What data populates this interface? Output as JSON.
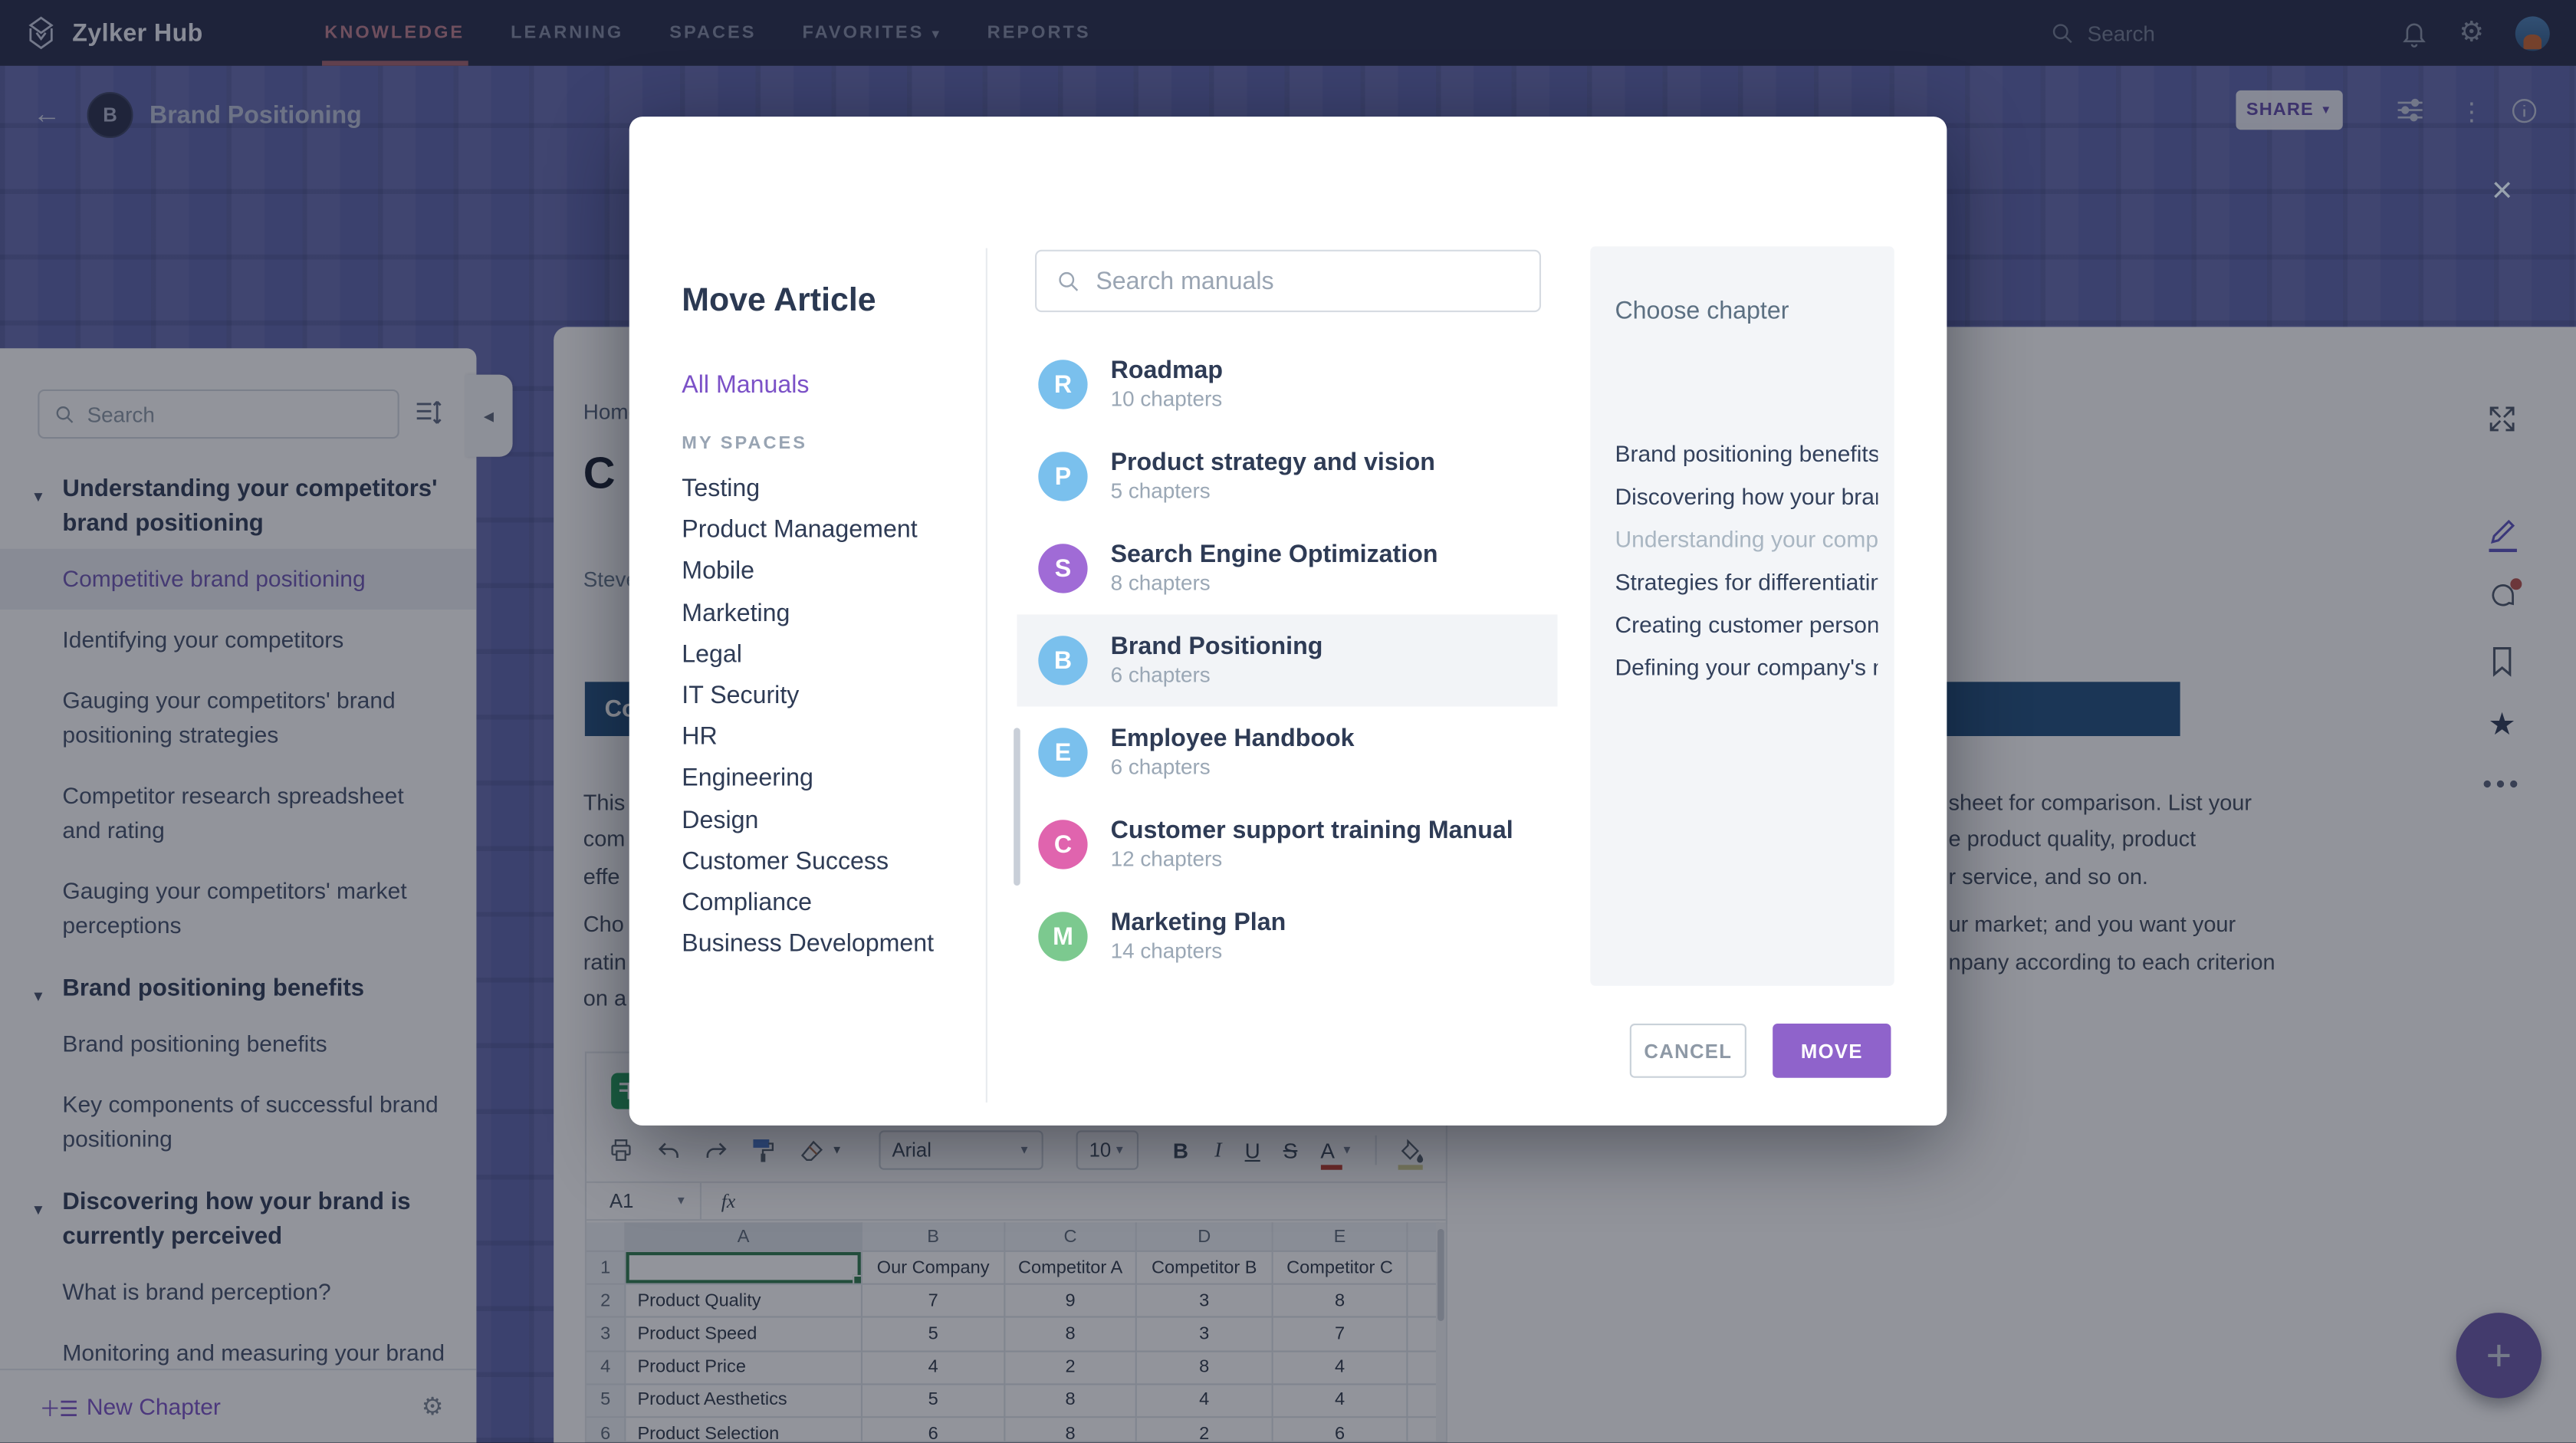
{
  "topbar": {
    "brand": "Zylker Hub",
    "nav": [
      {
        "label": "KNOWLEDGE",
        "active": true,
        "caret": false
      },
      {
        "label": "LEARNING",
        "active": false,
        "caret": false
      },
      {
        "label": "SPACES",
        "active": false,
        "caret": false
      },
      {
        "label": "FAVORITES",
        "active": false,
        "caret": true
      },
      {
        "label": "REPORTS",
        "active": false,
        "caret": false
      }
    ],
    "search_label": "Search"
  },
  "page_header": {
    "doc_initial": "B",
    "doc_title": "Brand Positioning",
    "share_label": "SHARE"
  },
  "sidebar": {
    "search_placeholder": "Search",
    "tree": [
      {
        "type": "section",
        "label": "Understanding your competitors' brand positioning"
      },
      {
        "type": "item",
        "label": "Competitive brand positioning",
        "selected": true
      },
      {
        "type": "item",
        "label": "Identifying your competitors"
      },
      {
        "type": "item",
        "label": "Gauging your competitors' brand positioning strategies"
      },
      {
        "type": "item",
        "label": "Competitor research spreadsheet and rating"
      },
      {
        "type": "item",
        "label": "Gauging your competitors' market perceptions"
      },
      {
        "type": "section",
        "label": "Brand positioning benefits"
      },
      {
        "type": "item",
        "label": "Brand positioning benefits"
      },
      {
        "type": "item",
        "label": "Key components of successful brand positioning"
      },
      {
        "type": "section",
        "label": "Discovering how your brand is currently perceived"
      },
      {
        "type": "item",
        "label": "What is brand perception?"
      },
      {
        "type": "item",
        "label": "Monitoring and measuring your brand perception"
      }
    ],
    "new_chapter_label": "New Chapter"
  },
  "article": {
    "breadcrumb": "Home",
    "title_fragment": "C",
    "author_fragment": "Steve",
    "heading_fragment": "Co",
    "body_left_fragments": [
      "This",
      "com",
      "effe",
      "Cho",
      "ratin",
      "on a"
    ],
    "body_right_fragments": [
      "sheet for comparison. List your",
      "e product quality, product",
      "r service, and so on.",
      "ur market; and you want your",
      "npany according to each criterion"
    ]
  },
  "sheet": {
    "font_name": "Arial",
    "font_size": "10",
    "name_box": "A1",
    "fx_label": "fx",
    "col_headers": [
      "A",
      "B",
      "C",
      "D",
      "E"
    ],
    "row_numbers": [
      "1",
      "2",
      "3",
      "4",
      "5",
      "6"
    ],
    "rows": [
      [
        "",
        "Our Company",
        "Competitor A",
        "Competitor B",
        "Competitor C"
      ],
      [
        "Product Quality",
        "7",
        "9",
        "3",
        "8"
      ],
      [
        "Product Speed",
        "5",
        "8",
        "3",
        "7"
      ],
      [
        "Product Price",
        "4",
        "2",
        "8",
        "4"
      ],
      [
        "Product Aesthetics",
        "5",
        "8",
        "4",
        "4"
      ],
      [
        "Product Selection",
        "6",
        "8",
        "2",
        "6"
      ]
    ]
  },
  "modal": {
    "title": "Move Article",
    "all_manuals_label": "All Manuals",
    "my_spaces_label": "MY SPACES",
    "spaces": [
      "Testing",
      "Product Management",
      "Mobile",
      "Marketing",
      "Legal",
      "IT Security",
      "HR",
      "Engineering",
      "Design",
      "Customer Success",
      "Compliance",
      "Business Development"
    ],
    "search_placeholder": "Search manuals",
    "manuals": [
      {
        "initial": "R",
        "name": "Roadmap",
        "chapters": "10 chapters",
        "color": "#7ac0ed",
        "selected": false
      },
      {
        "initial": "P",
        "name": "Product strategy and vision",
        "chapters": "5 chapters",
        "color": "#7ac0ed",
        "selected": false
      },
      {
        "initial": "S",
        "name": "Search Engine Optimization",
        "chapters": "8 chapters",
        "color": "#a06bd6",
        "selected": false
      },
      {
        "initial": "B",
        "name": "Brand Positioning",
        "chapters": "6 chapters",
        "color": "#7ac0ed",
        "selected": true
      },
      {
        "initial": "E",
        "name": "Employee Handbook",
        "chapters": "6 chapters",
        "color": "#7ac0ed",
        "selected": false
      },
      {
        "initial": "C",
        "name": "Customer support training Manual",
        "chapters": "12 chapters",
        "color": "#e064ae",
        "selected": false
      },
      {
        "initial": "M",
        "name": "Marketing Plan",
        "chapters": "14 chapters",
        "color": "#7cc98f",
        "selected": false
      }
    ],
    "chapter_panel": {
      "title": "Choose chapter",
      "items": [
        {
          "label": "Brand positioning benefits",
          "disabled": false
        },
        {
          "label": "Discovering how your bran...",
          "disabled": false
        },
        {
          "label": "Understanding your compe...",
          "disabled": true
        },
        {
          "label": "Strategies for differentiatin...",
          "disabled": false
        },
        {
          "label": "Creating customer persona",
          "disabled": false
        },
        {
          "label": "Defining your company's mi...",
          "disabled": false
        }
      ]
    },
    "cancel_label": "CANCEL",
    "move_label": "MOVE"
  }
}
